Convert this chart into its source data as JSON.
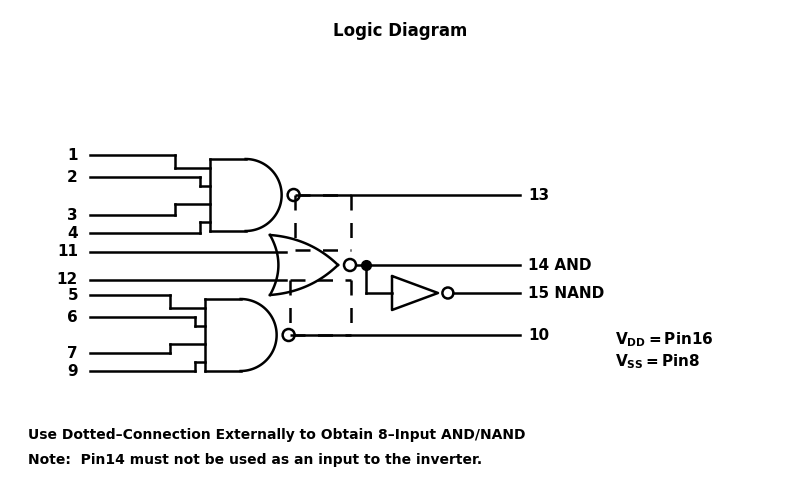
{
  "title": "Logic Diagram",
  "title_fontsize": 12,
  "title_fontweight": "bold",
  "bg_color": "#ffffff",
  "line_color": "#000000",
  "line_width": 1.8,
  "note1": "Use Dotted–Connection Externally to Obtain 8–Input AND/NAND",
  "note2": "Note:  Pin14 must not be used as an input to the inverter."
}
